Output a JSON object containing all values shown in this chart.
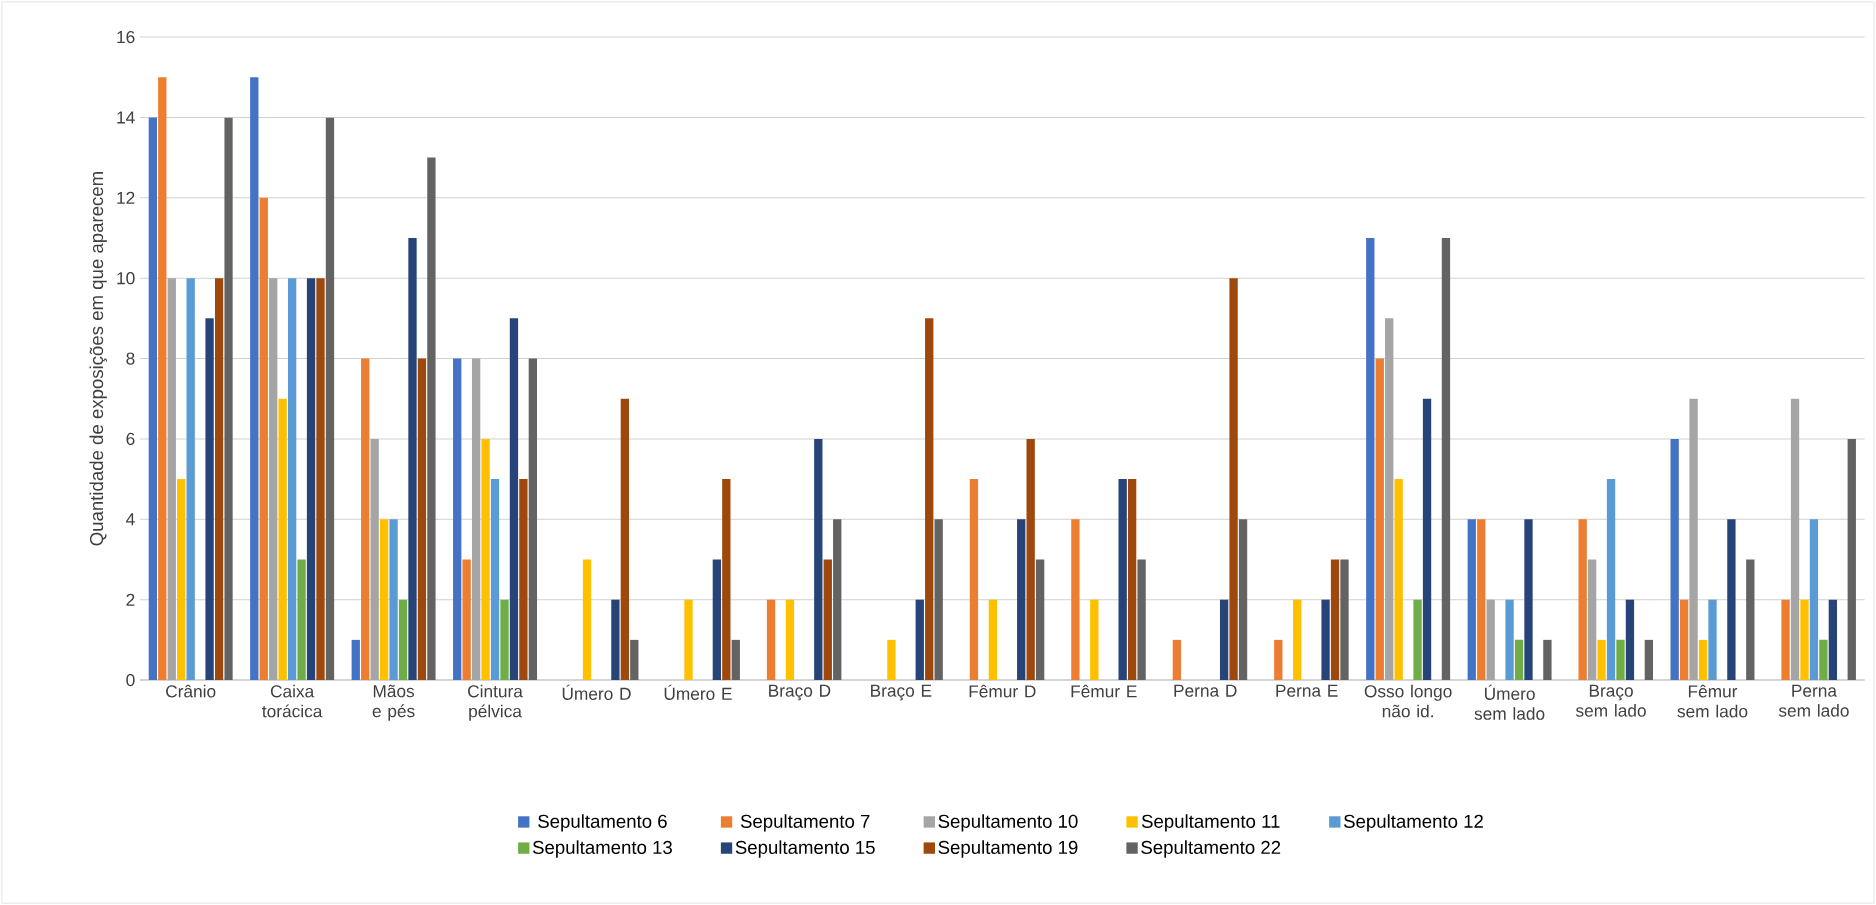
{
  "chart_data": {
    "type": "bar",
    "ylabel": "Quantidade de exposições em que aparecem",
    "categories": [
      "Crânio",
      "Caixa torácica",
      "Mãos e pés",
      "Cintura pélvica",
      "Úmero D",
      "Úmero E",
      "Braço D",
      "Braço E",
      "Fêmur D",
      "Fêmur E",
      "Perna D",
      "Perna E",
      "Osso longo não id.",
      "Úmero sem lado",
      "Braço sem lado",
      "Fêmur sem lado",
      "Perna sem lado"
    ],
    "series": [
      {
        "name": "Sepultamento 6",
        "color": "#4472c4",
        "values": [
          14,
          15,
          1,
          8,
          0,
          0,
          0,
          0,
          0,
          0,
          0,
          0,
          11,
          4,
          0,
          6,
          0
        ]
      },
      {
        "name": "Sepultamento 7",
        "color": "#ed7d31",
        "values": [
          15,
          12,
          8,
          3,
          0,
          0,
          2,
          0,
          5,
          4,
          1,
          1,
          8,
          4,
          4,
          2,
          2
        ]
      },
      {
        "name": "Sepultamento 10",
        "color": "#a5a5a5",
        "values": [
          10,
          10,
          6,
          8,
          0,
          0,
          0,
          0,
          0,
          0,
          0,
          0,
          9,
          2,
          3,
          7,
          7
        ]
      },
      {
        "name": "Sepultamento 11",
        "color": "#ffc000",
        "values": [
          5,
          7,
          4,
          6,
          3,
          2,
          2,
          1,
          2,
          2,
          0,
          2,
          5,
          0,
          1,
          1,
          2
        ]
      },
      {
        "name": "Sepultamento 12",
        "color": "#5b9bd5",
        "values": [
          10,
          10,
          4,
          5,
          0,
          0,
          0,
          0,
          0,
          0,
          0,
          0,
          0,
          2,
          5,
          2,
          4
        ]
      },
      {
        "name": "Sepultamento 13",
        "color": "#70ad47",
        "values": [
          0,
          3,
          2,
          2,
          0,
          0,
          0,
          0,
          0,
          0,
          0,
          0,
          2,
          1,
          1,
          0,
          1
        ]
      },
      {
        "name": "Sepultamento 15",
        "color": "#264478",
        "values": [
          9,
          10,
          11,
          9,
          2,
          3,
          6,
          2,
          4,
          5,
          2,
          2,
          7,
          4,
          2,
          4,
          2
        ]
      },
      {
        "name": "Sepultamento 19",
        "color": "#9e480e",
        "values": [
          10,
          10,
          8,
          5,
          7,
          5,
          3,
          9,
          6,
          5,
          10,
          3,
          0,
          0,
          0,
          0,
          0
        ]
      },
      {
        "name": "Sepultamento 22",
        "color": "#636363",
        "values": [
          14,
          14,
          13,
          8,
          1,
          1,
          4,
          4,
          3,
          3,
          4,
          3,
          11,
          1,
          1,
          3,
          6
        ]
      }
    ],
    "ylim": [
      0,
      16
    ],
    "yticks": [
      0,
      2,
      4,
      6,
      8,
      10,
      12,
      14,
      16
    ],
    "grid": "y",
    "legend": "bottom"
  }
}
